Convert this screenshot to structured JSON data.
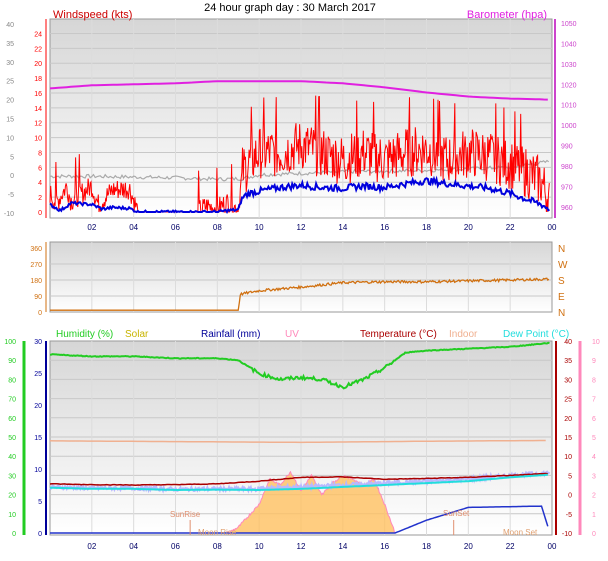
{
  "title": "24 hour graph day : 30 March 2017",
  "colors": {
    "wind_label": "#cc0000",
    "gust": "#ff0000",
    "wind_avg": "#0000dd",
    "baro": "#e020e0",
    "baro_axis": "#cc44cc",
    "temp_feels": "#aaaaaa",
    "direction": "#d07010",
    "humidity": "#22cc22",
    "solar": "#c8b400",
    "rainfall": "#000099",
    "uv": "#ff88bb",
    "temperature": "#aa0000",
    "indoor": "#f0b090",
    "dewpoint": "#22dddd",
    "dew_band": "#b8b8ff",
    "solar_fill": "#ffc060",
    "sun_label": "#e09070",
    "moon_label": "#e0a070"
  },
  "chart_data": [
    {
      "type": "line",
      "panel": "wind",
      "title": "24 hour graph day : 30 March 2017",
      "y_left_label": "Windspeed (kts)",
      "y_right_label": "Barometer (hpa)",
      "y_outer_ticks": [
        "-10",
        "-5",
        "0",
        "5",
        "10",
        "15",
        "20",
        "25",
        "30",
        "35",
        "40"
      ],
      "y_inner_ticks": [
        "0",
        "2",
        "4",
        "6",
        "8",
        "10",
        "12",
        "14",
        "16",
        "18",
        "20",
        "22",
        "24"
      ],
      "y_right_ticks": [
        "960",
        "970",
        "980",
        "990",
        "1000",
        "1010",
        "1020",
        "1030",
        "1040",
        "1050"
      ],
      "x_ticks": [
        "02",
        "04",
        "06",
        "08",
        "10",
        "12",
        "14",
        "16",
        "18",
        "20",
        "22",
        "00"
      ],
      "xlim": [
        0,
        24
      ],
      "ylim": [
        0,
        25
      ],
      "y2lim": [
        957,
        1050
      ],
      "series": [
        {
          "key": "baro",
          "hours": [
            0,
            2,
            4,
            6,
            8,
            10,
            12,
            14,
            16,
            18,
            20,
            22,
            23.9
          ],
          "values": [
            1018,
            1019.5,
            1020,
            1020.5,
            1021.5,
            1021.5,
            1021.5,
            1020.5,
            1018.5,
            1016,
            1014,
            1013,
            1012.5
          ]
        },
        {
          "key": "temp_feels",
          "hours": [
            0,
            2,
            4,
            6,
            8,
            9.2,
            10,
            12,
            14,
            16,
            18,
            20,
            22,
            23.9
          ],
          "values": [
            4.8,
            4.8,
            4.7,
            4.6,
            4.4,
            4.5,
            5.0,
            5.2,
            5.4,
            5.5,
            5.6,
            5.8,
            6.0,
            6.8
          ]
        },
        {
          "key": "gust",
          "hours": [
            0,
            0.3,
            0.8,
            1.0,
            2.0,
            2.3,
            3.0,
            3.8,
            4.2,
            5.0,
            6.0,
            7.0,
            7.5,
            8.0,
            8.5,
            9.0,
            9.2,
            9.5,
            10,
            11,
            12,
            13,
            14,
            15,
            16,
            17,
            18,
            19,
            20,
            21,
            22,
            23,
            23.5,
            23.9
          ],
          "values": [
            2.5,
            1.2,
            3.5,
            1.5,
            3.5,
            1.0,
            3.0,
            3.2,
            0,
            0,
            0,
            0,
            0.8,
            0.5,
            1.3,
            0.3,
            5.5,
            6.5,
            8,
            8,
            9,
            8,
            7,
            8,
            7,
            8,
            8.5,
            7,
            8,
            7.5,
            6.5,
            5,
            4,
            1.5
          ]
        },
        {
          "key": "wind_avg",
          "hours": [
            0,
            0.5,
            1,
            2,
            2.5,
            3,
            3.8,
            4.2,
            5,
            6,
            7,
            8,
            8.5,
            9,
            9.2,
            9.5,
            10,
            11,
            12,
            13,
            14,
            15,
            16,
            17,
            18,
            19,
            20,
            21,
            22,
            23,
            23.5,
            23.9
          ],
          "values": [
            1.0,
            0.2,
            1.2,
            1.0,
            0.4,
            0.6,
            0.5,
            0,
            0,
            0,
            0,
            0,
            0.2,
            0.3,
            2.0,
            2.5,
            2.8,
            3.3,
            3.6,
            3.3,
            3.2,
            3.5,
            3.3,
            3.8,
            4.2,
            3.8,
            3.5,
            3.2,
            2.5,
            1.5,
            1.0,
            0.3
          ]
        }
      ]
    },
    {
      "type": "line",
      "panel": "direction",
      "y_ticks": [
        "0",
        "90",
        "180",
        "270",
        "360"
      ],
      "y_compass": [
        "N",
        "E",
        "S",
        "W",
        "N"
      ],
      "xlim": [
        0,
        24
      ],
      "ylim": [
        0,
        360
      ],
      "series": [
        {
          "key": "direction",
          "hours": [
            0,
            4,
            8,
            9,
            9.1,
            10,
            11,
            12,
            14,
            16,
            18,
            20,
            22,
            23.9
          ],
          "values": [
            10,
            10,
            10,
            10,
            100,
            120,
            130,
            140,
            165,
            170,
            170,
            175,
            180,
            185
          ]
        }
      ]
    },
    {
      "type": "area",
      "panel": "multi",
      "legend": [
        "Humidity (%)",
        "Solar",
        "Rainfall (mm)",
        "UV",
        "Temperature (°C)",
        "Indoor",
        "Dew Point (°C)"
      ],
      "y_humidity_ticks": [
        "0",
        "10",
        "20",
        "30",
        "40",
        "50",
        "60",
        "70",
        "80",
        "90",
        "100"
      ],
      "y_rain_ticks": [
        "0",
        "5",
        "10",
        "15",
        "20",
        "25",
        "30"
      ],
      "y_temp_ticks": [
        "-10",
        "-5",
        "0",
        "5",
        "10",
        "15",
        "20",
        "25",
        "30",
        "35",
        "40"
      ],
      "y_uv_ticks": [
        "0",
        "1",
        "2",
        "3",
        "4",
        "5",
        "6",
        "7",
        "8",
        "9",
        "10"
      ],
      "x_ticks": [
        "02",
        "04",
        "06",
        "08",
        "10",
        "12",
        "14",
        "16",
        "18",
        "20",
        "22",
        "00"
      ],
      "annotations": [
        "SunRise",
        "SunSet",
        "Moon Rise",
        "Moon Set"
      ],
      "xlim": [
        0,
        24
      ],
      "ylim": [
        0,
        100
      ],
      "series": [
        {
          "key": "humidity",
          "hours": [
            0,
            2,
            4,
            6,
            8,
            9,
            10,
            11,
            12,
            13,
            14,
            15,
            16,
            17,
            18,
            20,
            22,
            23.9
          ],
          "values": [
            93,
            92,
            92,
            91,
            91,
            90,
            83,
            80,
            81,
            80,
            76,
            80,
            86,
            94,
            95,
            96,
            97,
            99
          ]
        },
        {
          "key": "indoor",
          "hours": [
            0,
            6,
            12,
            18,
            23.9
          ],
          "values": [
            14.0,
            13.8,
            13.6,
            13.9,
            14.1
          ]
        },
        {
          "key": "temperature",
          "hours": [
            0,
            2,
            4,
            6,
            8,
            10,
            12,
            14,
            16,
            18,
            20,
            22,
            23.9
          ],
          "values": [
            2.8,
            2.6,
            2.5,
            2.6,
            2.8,
            3.5,
            4.5,
            4.6,
            4.0,
            4.2,
            4.5,
            5.0,
            5.5
          ]
        },
        {
          "key": "dewpoint",
          "hours": [
            0,
            2,
            4,
            6,
            8,
            10,
            12,
            14,
            16,
            18,
            20,
            22,
            23.9
          ],
          "values": [
            1.8,
            1.5,
            1.5,
            1.2,
            1.3,
            1.2,
            1.5,
            2.0,
            2.5,
            3.0,
            3.5,
            4.5,
            5.2
          ]
        },
        {
          "key": "solar_uv",
          "hours": [
            8.5,
            9,
            10,
            10.5,
            11,
            11.5,
            12,
            12.5,
            13,
            13.5,
            14,
            14.5,
            15,
            15.5,
            16,
            16.5
          ],
          "values": [
            0,
            0.3,
            1.5,
            2.8,
            2.5,
            3.2,
            2.2,
            3.0,
            2.0,
            2.6,
            3.0,
            2.8,
            2.5,
            2.8,
            1.5,
            0
          ]
        },
        {
          "key": "rainfall",
          "hours": [
            0,
            16.5,
            18,
            20,
            23.5,
            23.9
          ],
          "values": [
            0,
            0,
            2,
            4,
            4.2,
            0
          ]
        }
      ]
    }
  ]
}
